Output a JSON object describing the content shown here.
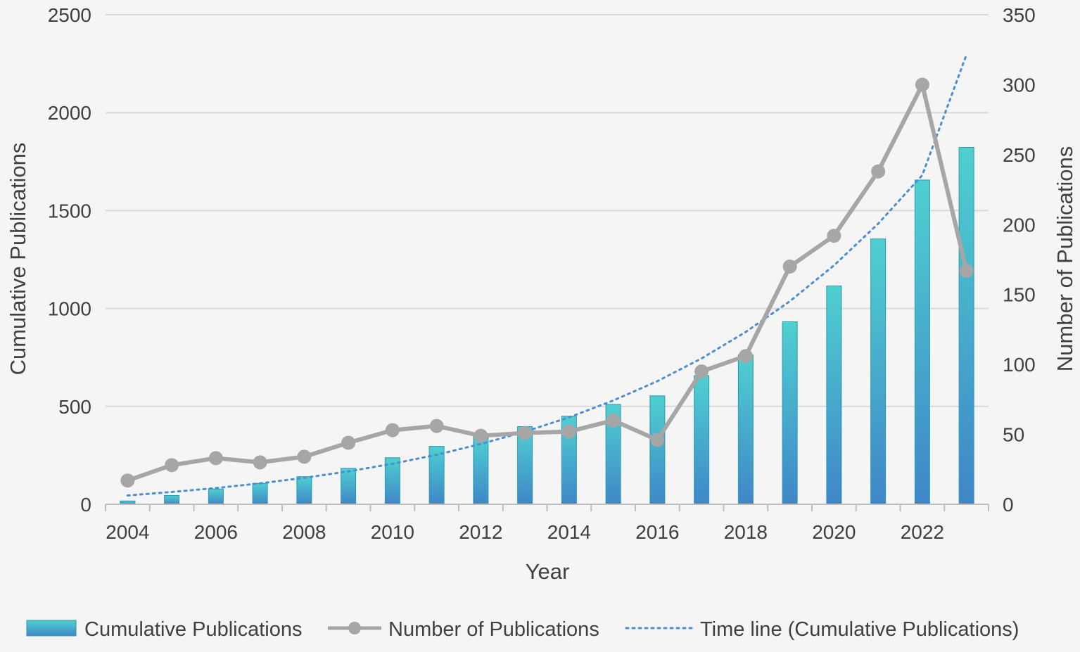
{
  "chart_data": {
    "type": "bar+line",
    "title": "",
    "xlabel": "Year",
    "ylabel_left": "Cumulative Publications",
    "ylabel_right": "Number of Publications",
    "ylim_left": [
      0,
      2500
    ],
    "ylim_right": [
      0,
      350
    ],
    "yticks_left": [
      "0",
      "500",
      "1000",
      "1500",
      "2000",
      "2500"
    ],
    "yticks_right": [
      "0",
      "50",
      "100",
      "150",
      "200",
      "250",
      "300",
      "350"
    ],
    "xticks": [
      "2004",
      "2006",
      "2008",
      "2010",
      "2012",
      "2014",
      "2016",
      "2018",
      "2020",
      "2022"
    ],
    "years": [
      2004,
      2005,
      2006,
      2007,
      2008,
      2009,
      2010,
      2011,
      2012,
      2013,
      2014,
      2015,
      2016,
      2017,
      2018,
      2019,
      2020,
      2021,
      2022,
      2023
    ],
    "series": [
      {
        "name": "Cumulative Publications",
        "kind": "bar",
        "axis": "left",
        "values": [
          17,
          45,
          78,
          107,
          141,
          184,
          238,
          296,
          346,
          397,
          450,
          510,
          554,
          657,
          763,
          932,
          1115,
          1355,
          1656,
          1823
        ]
      },
      {
        "name": "Number of Publications",
        "kind": "line",
        "axis": "right",
        "values": [
          17,
          28,
          33,
          30,
          34,
          44,
          53,
          56,
          49,
          51,
          52,
          60,
          46,
          95,
          106,
          170,
          192,
          238,
          300,
          167
        ]
      },
      {
        "name": "Time line (Cumulative Publications)",
        "kind": "trendline",
        "axis": "left",
        "values": [
          45,
          63,
          83,
          107,
          135,
          168,
          207,
          253,
          308,
          371,
          444,
          530,
          629,
          745,
          880,
          1037,
          1220,
          1433,
          1681,
          2296
        ]
      }
    ],
    "legend": [
      "Cumulative Publications",
      "Number of Publications",
      "Time line (Cumulative Publications)"
    ],
    "legend_position": "bottom",
    "grid": true,
    "colors": {
      "bar_top": "#4fd0d0",
      "bar_bottom": "#3f86c8",
      "bar_stroke": "#2a9ab0",
      "line": "#a6a6a6",
      "trend": "#4a8fd6",
      "grid": "#d9d9d9",
      "background": "#f5f5f5"
    }
  }
}
